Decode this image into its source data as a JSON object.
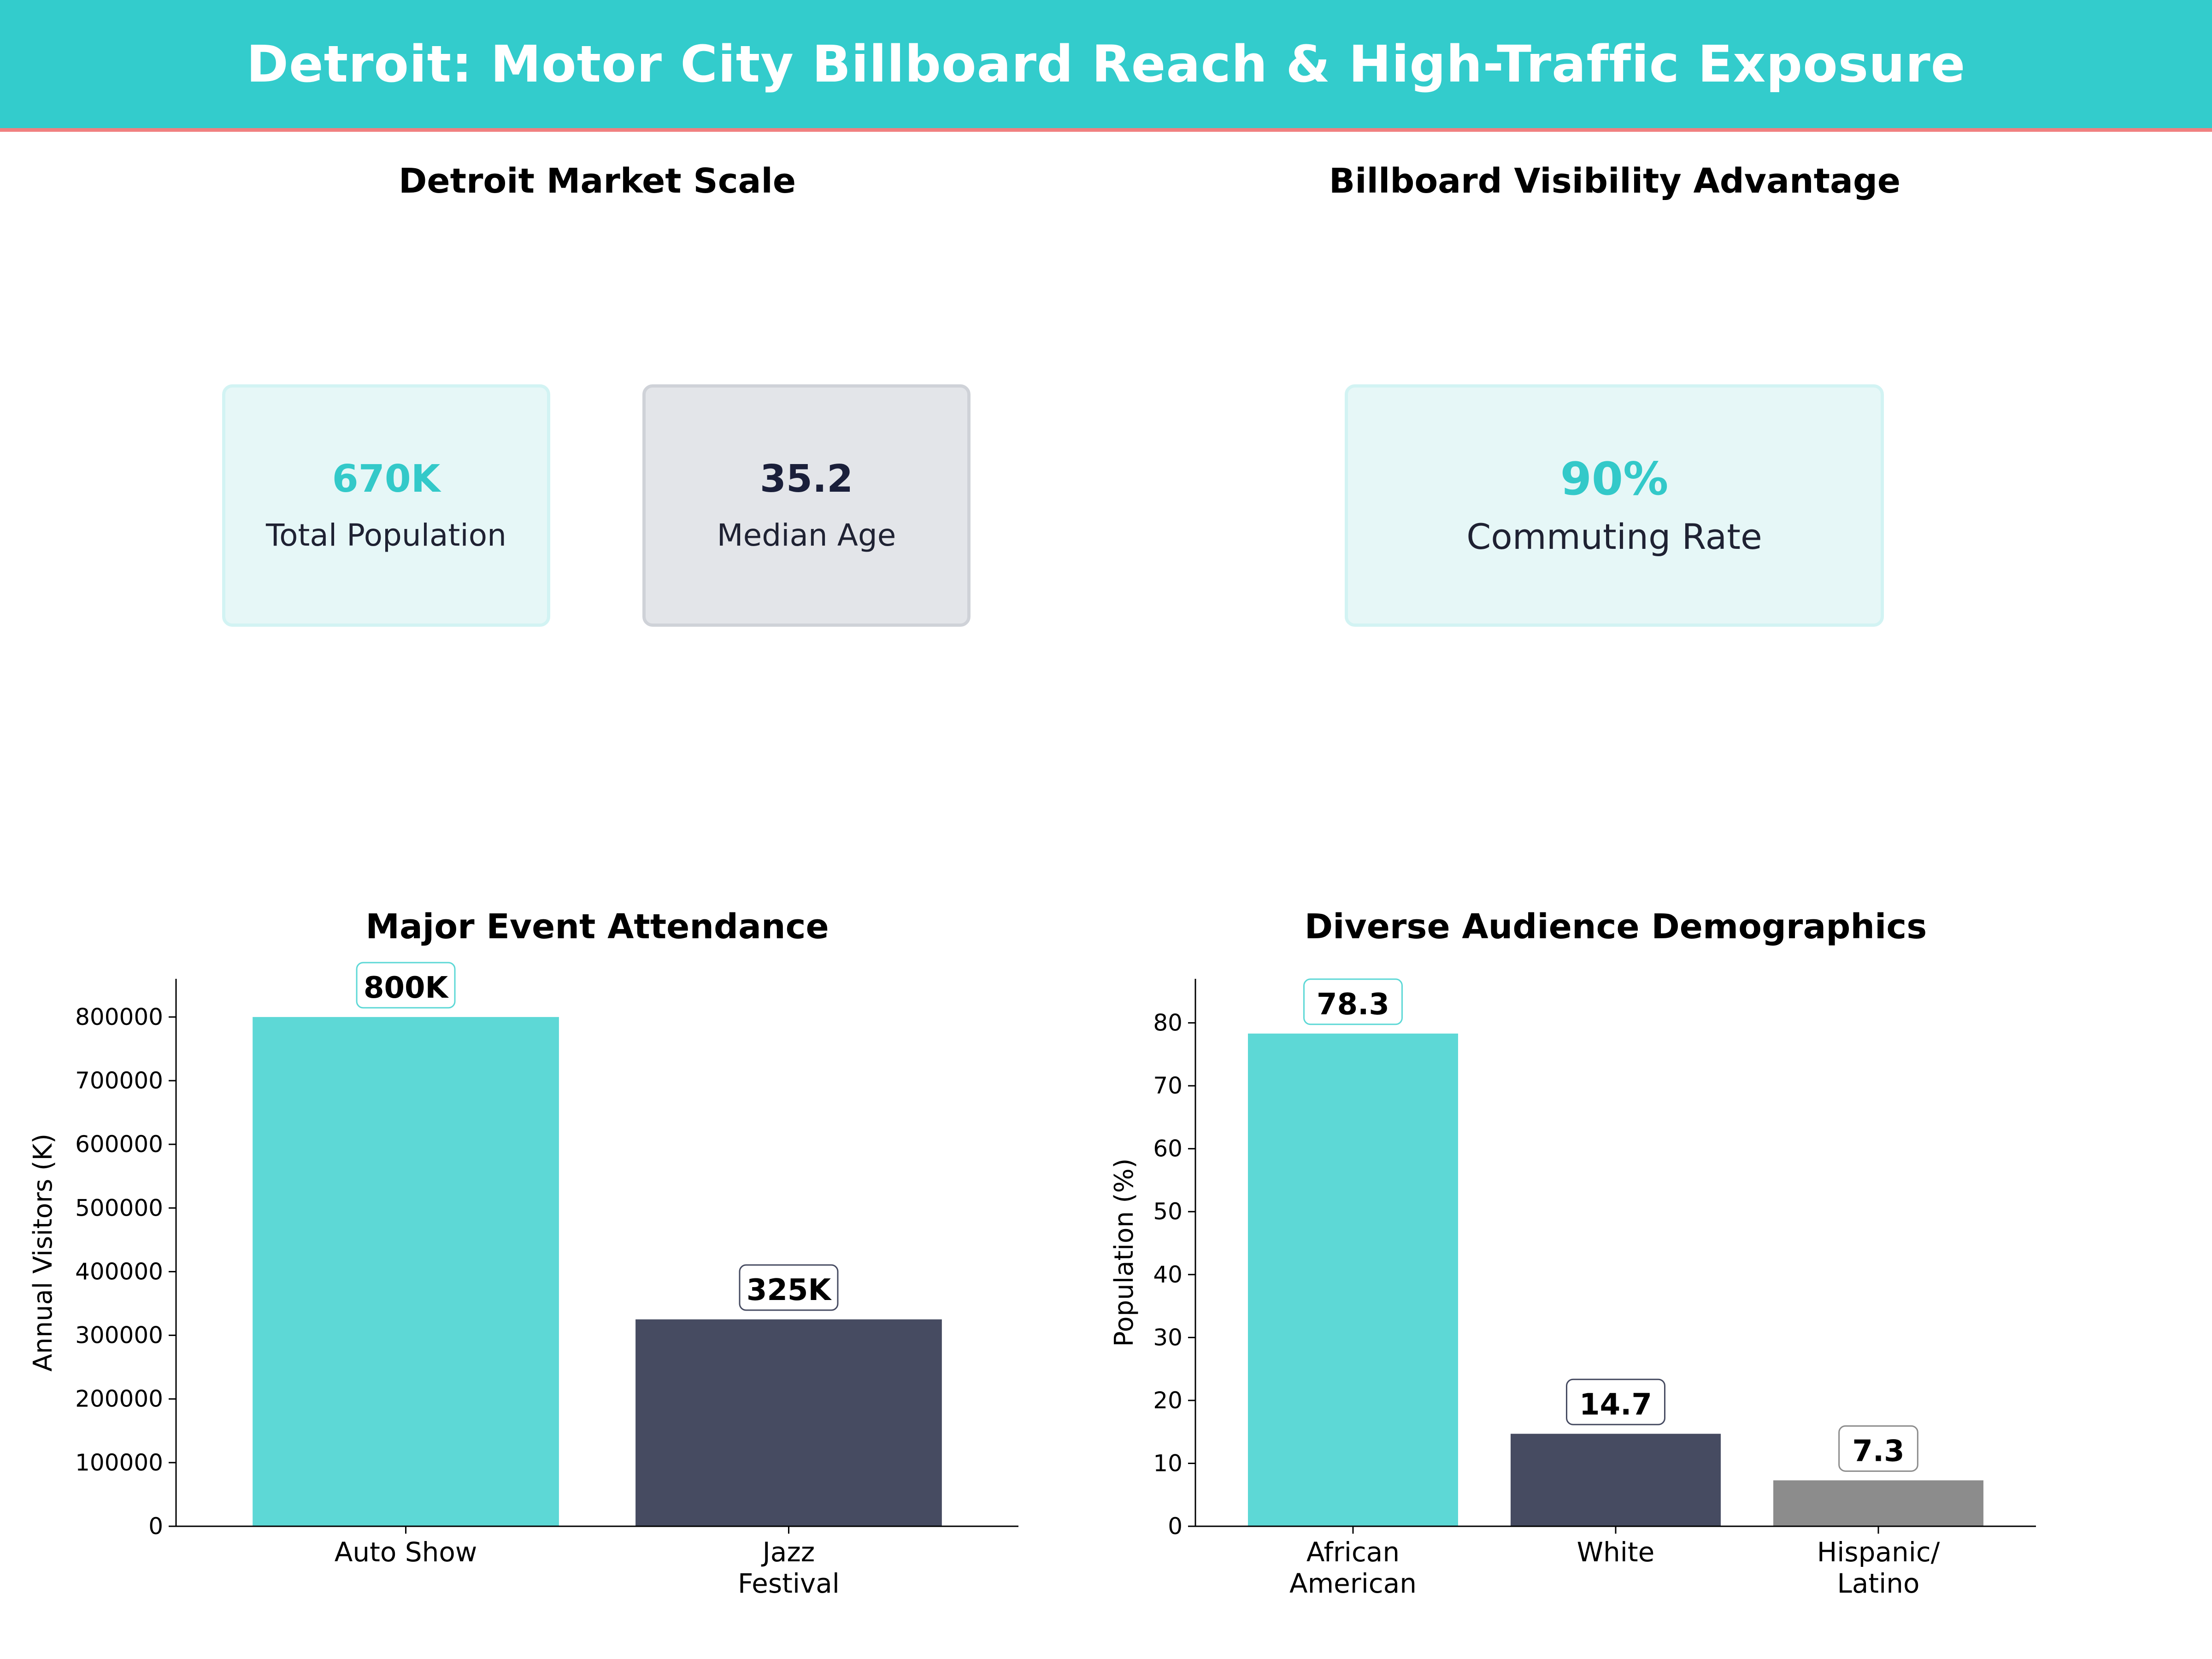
{
  "header": {
    "title": "Detroit: Motor City Billboard Reach & High-Traffic Exposure",
    "bg_color": "#33cccc",
    "accent_line": "#f08080"
  },
  "market_scale": {
    "title": "Detroit Market Scale",
    "cards": [
      {
        "value": "670K",
        "label": "Total Population",
        "value_color": "#33c9c9",
        "bg": "#e6f7f7",
        "border": "#d2f3f3"
      },
      {
        "value": "35.2",
        "label": "Median Age",
        "value_color": "#1a1f3a",
        "bg": "#e3e5e9",
        "border": "#cfd2d8"
      }
    ]
  },
  "visibility": {
    "title": "Billboard Visibility Advantage",
    "card": {
      "value": "90%",
      "label": "Commuting Rate",
      "value_color": "#33c9c9",
      "bg": "#e6f7f7",
      "border": "#d2f3f3"
    }
  },
  "chart_data": [
    {
      "type": "bar",
      "title": "Major Event Attendance",
      "ylabel": "Annual Visitors (K)",
      "xlabel": "",
      "categories": [
        [
          "Auto Show"
        ],
        [
          "Jazz",
          "Festival"
        ]
      ],
      "values": [
        800000,
        325000
      ],
      "data_labels": [
        "800K",
        "325K"
      ],
      "colors": [
        "#5dd8d6",
        "#464b61"
      ],
      "ylim": [
        0,
        860000
      ],
      "yticks": [
        0,
        100000,
        200000,
        300000,
        400000,
        500000,
        600000,
        700000,
        800000
      ],
      "grid": false
    },
    {
      "type": "bar",
      "title": "Diverse Audience Demographics",
      "ylabel": "Population (%)",
      "xlabel": "",
      "categories": [
        [
          "African",
          "American"
        ],
        [
          "White"
        ],
        [
          "Hispanic/",
          "Latino"
        ]
      ],
      "values": [
        78.3,
        14.7,
        7.3
      ],
      "data_labels": [
        "78.3",
        "14.7",
        "7.3"
      ],
      "colors": [
        "#5dd8d6",
        "#464b61",
        "#8c8c8c"
      ],
      "ylim": [
        0,
        87
      ],
      "yticks": [
        0,
        10,
        20,
        30,
        40,
        50,
        60,
        70,
        80
      ],
      "grid": false
    }
  ]
}
